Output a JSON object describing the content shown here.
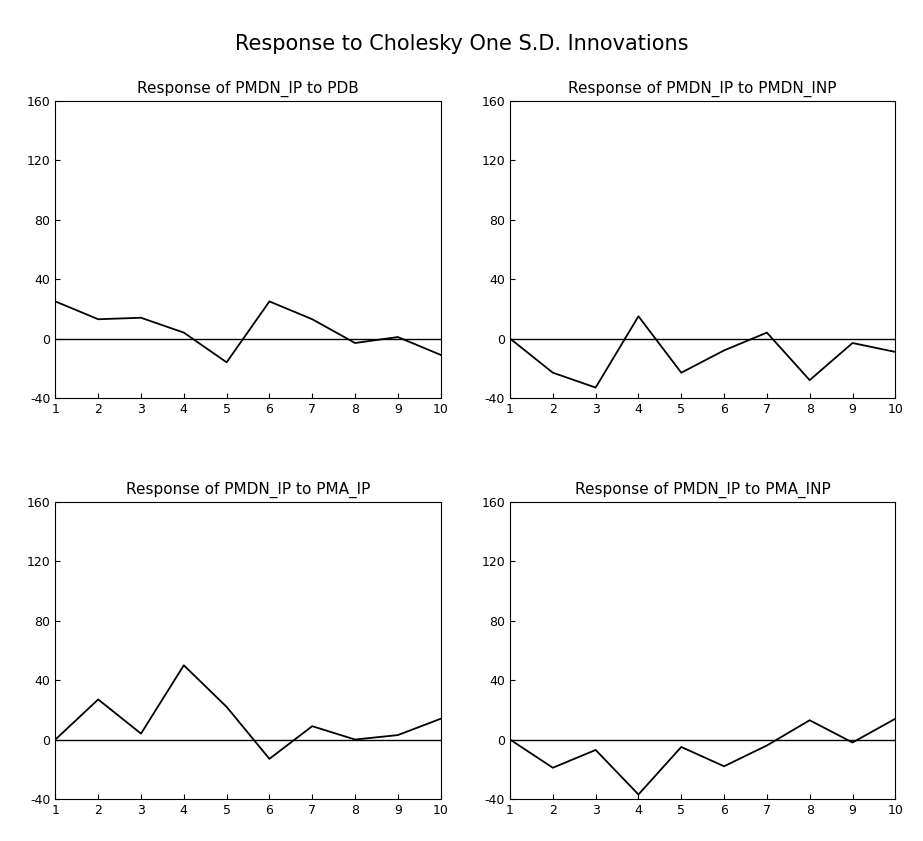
{
  "title": "Response to Cholesky One S.D. Innovations",
  "chart_data": [
    {
      "type": "line",
      "title": "Response of PMDN_IP to PDB",
      "x": [
        1,
        2,
        3,
        4,
        5,
        6,
        7,
        8,
        9,
        10
      ],
      "values": [
        25,
        13,
        14,
        4,
        -16,
        25,
        13,
        -3,
        1,
        -11
      ],
      "color": "#000000",
      "hline": 0,
      "xlim": [
        1,
        10
      ],
      "xticks": [
        1,
        2,
        3,
        4,
        5,
        6,
        7,
        8,
        9,
        10
      ],
      "ylim": [
        -40,
        160
      ],
      "yticks": [
        -40,
        0,
        40,
        80,
        120,
        160
      ],
      "grid": false
    },
    {
      "type": "line",
      "title": "Response of PMDN_IP to PMDN_INP",
      "x": [
        1,
        2,
        3,
        4,
        5,
        6,
        7,
        8,
        9,
        10
      ],
      "values": [
        0,
        -23,
        -33,
        15,
        -23,
        -8,
        4,
        -28,
        -3,
        -9
      ],
      "color": "#000000",
      "hline": 0,
      "xlim": [
        1,
        10
      ],
      "xticks": [
        1,
        2,
        3,
        4,
        5,
        6,
        7,
        8,
        9,
        10
      ],
      "ylim": [
        -40,
        160
      ],
      "yticks": [
        -40,
        0,
        40,
        80,
        120,
        160
      ],
      "grid": false
    },
    {
      "type": "line",
      "title": "Response of PMDN_IP to PMA_IP",
      "x": [
        1,
        2,
        3,
        4,
        5,
        6,
        7,
        8,
        9,
        10
      ],
      "values": [
        0,
        27,
        4,
        50,
        22,
        -13,
        9,
        0,
        3,
        14
      ],
      "color": "#000000",
      "hline": 0,
      "xlim": [
        1,
        10
      ],
      "xticks": [
        1,
        2,
        3,
        4,
        5,
        6,
        7,
        8,
        9,
        10
      ],
      "ylim": [
        -40,
        160
      ],
      "yticks": [
        -40,
        0,
        40,
        80,
        120,
        160
      ],
      "grid": false
    },
    {
      "type": "line",
      "title": "Response of PMDN_IP to PMA_INP",
      "x": [
        1,
        2,
        3,
        4,
        5,
        6,
        7,
        8,
        9,
        10
      ],
      "values": [
        0,
        -19,
        -7,
        -37,
        -5,
        -18,
        -4,
        13,
        -2,
        14
      ],
      "color": "#000000",
      "hline": 0,
      "xlim": [
        1,
        10
      ],
      "xticks": [
        1,
        2,
        3,
        4,
        5,
        6,
        7,
        8,
        9,
        10
      ],
      "ylim": [
        -40,
        160
      ],
      "yticks": [
        -40,
        0,
        40,
        80,
        120,
        160
      ],
      "grid": false
    }
  ]
}
